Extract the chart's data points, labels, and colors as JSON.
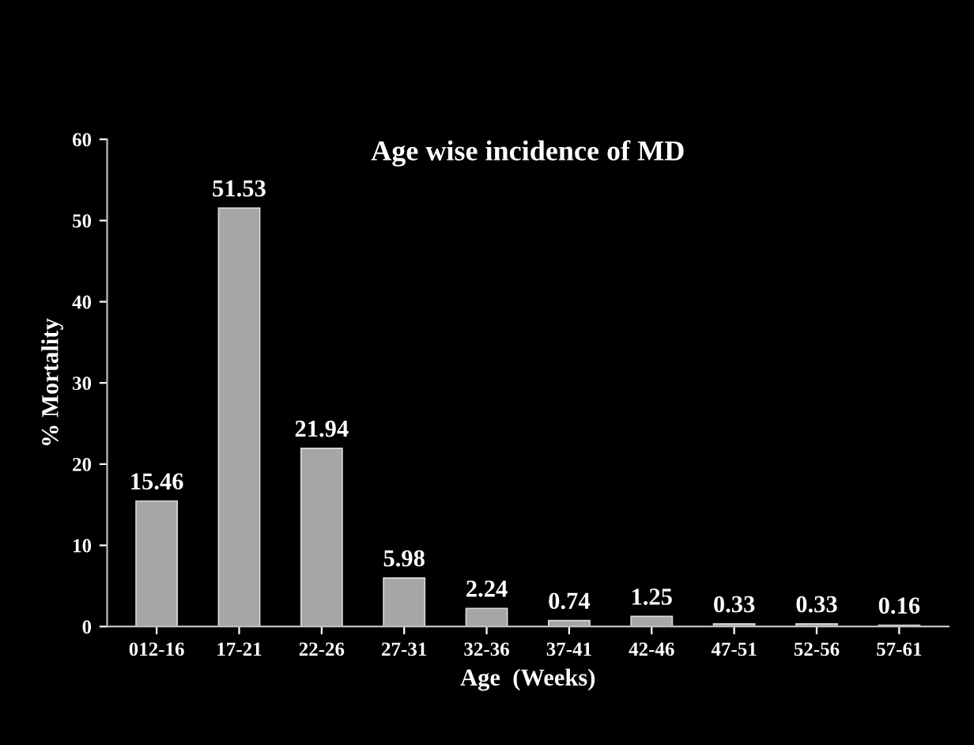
{
  "chart_data": {
    "type": "bar",
    "title": "Age wise incidence of MD",
    "xlabel": "Age  (Weeks)",
    "ylabel": "% Mortality",
    "categories": [
      "012-16",
      "17-21",
      "22-26",
      "27-31",
      "32-36",
      "37-41",
      "42-46",
      "47-51",
      "52-56",
      "57-61"
    ],
    "values": [
      15.46,
      51.53,
      21.94,
      5.98,
      2.24,
      0.74,
      1.25,
      0.33,
      0.33,
      0.16
    ],
    "color": "#a6a6a6",
    "ylim": [
      0,
      60
    ],
    "yticks": [
      0,
      10,
      20,
      30,
      40,
      50,
      60
    ],
    "grid": false,
    "data_labels": true
  }
}
